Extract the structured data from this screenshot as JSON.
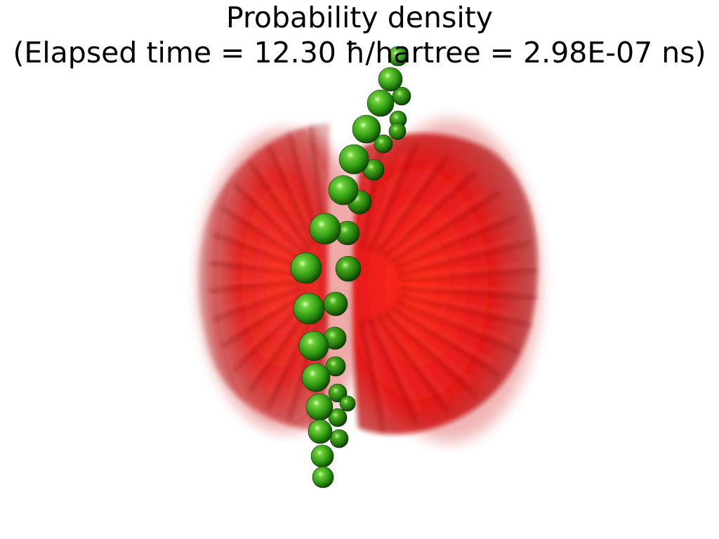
{
  "title": {
    "line1": "Probability density",
    "line2": "(Elapsed time = 12.30 ħ/hartree = 2.98E-07 ns)"
  },
  "colors": {
    "density": "#e01010",
    "density_dark": "#7a0000",
    "atom": "#2f9a14",
    "atom_dark": "#134d05",
    "atom_highlight": "#d8ffb8",
    "background": "#ffffff",
    "text": "#000000"
  }
}
